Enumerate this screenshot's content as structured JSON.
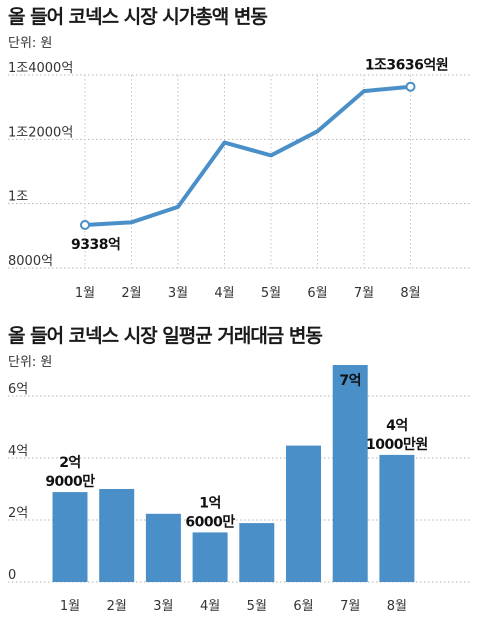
{
  "chart_data": [
    {
      "type": "line",
      "title": "올 들어 코넥스 시장 시가총액 변동",
      "unit_label": "단위: 원",
      "categories": [
        "1월",
        "2월",
        "3월",
        "4월",
        "5월",
        "6월",
        "7월",
        "8월"
      ],
      "values": [
        9338,
        9420,
        9900,
        11900,
        11500,
        12250,
        13500,
        13636
      ],
      "unit": "억원",
      "y_ticks": [
        {
          "value": 8000,
          "label": "8000억"
        },
        {
          "value": 10000,
          "label": "1조"
        },
        {
          "value": 12000,
          "label": "1조2000억"
        },
        {
          "value": 14000,
          "label": "1조4000억"
        }
      ],
      "ylim": [
        8000,
        14000
      ],
      "annotations": [
        {
          "index": 0,
          "text": "9338억"
        },
        {
          "index": 7,
          "text": "1조3636억원"
        }
      ],
      "color": "#4a8fc7",
      "grid": "dotted-horizontal"
    },
    {
      "type": "bar",
      "title": "올 들어 코넥스 시장 일평균 거래대금 변동",
      "unit_label": "단위: 원",
      "categories": [
        "1월",
        "2월",
        "3월",
        "4월",
        "5월",
        "6월",
        "7월",
        "8월"
      ],
      "values": [
        29000,
        30000,
        22000,
        16000,
        19000,
        44000,
        70000,
        41000
      ],
      "unit": "만원",
      "y_ticks": [
        {
          "value": 0,
          "label": "0"
        },
        {
          "value": 20000,
          "label": "2억"
        },
        {
          "value": 40000,
          "label": "4억"
        },
        {
          "value": 60000,
          "label": "6억"
        }
      ],
      "ylim": [
        0,
        70000
      ],
      "annotations": [
        {
          "index": 0,
          "lines": [
            "2억",
            "9000만"
          ]
        },
        {
          "index": 3,
          "lines": [
            "1억",
            "6000만"
          ]
        },
        {
          "index": 6,
          "lines": [
            "7억"
          ],
          "inside": true
        },
        {
          "index": 7,
          "lines": [
            "4억",
            "1000만원"
          ]
        }
      ],
      "color": "#4a8fc7",
      "grid": "dotted-horizontal"
    }
  ]
}
